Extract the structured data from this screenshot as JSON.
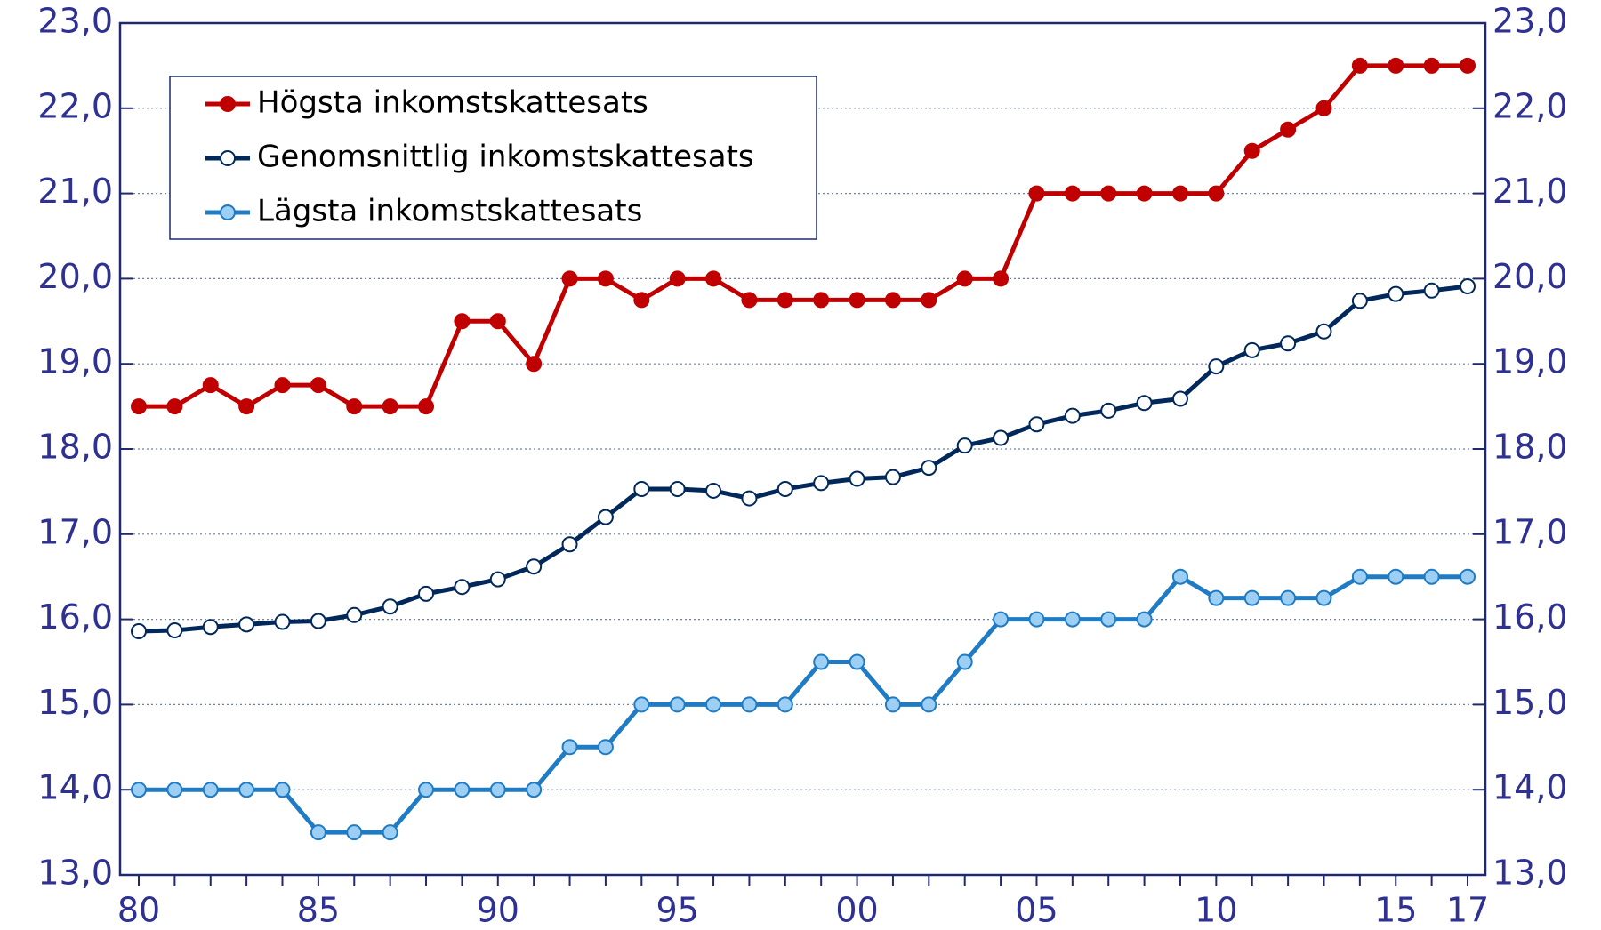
{
  "chart_data": {
    "type": "line",
    "categories": [
      "80",
      null,
      null,
      null,
      null,
      "85",
      null,
      null,
      null,
      null,
      "90",
      null,
      null,
      null,
      null,
      "95",
      null,
      null,
      null,
      null,
      "00",
      null,
      null,
      null,
      null,
      "05",
      null,
      null,
      null,
      null,
      "10",
      null,
      null,
      null,
      null,
      "15",
      null,
      "17"
    ],
    "series": [
      {
        "name": "Högsta inkomstskattesats",
        "color": "#c00000",
        "marker_fill": "#c00000",
        "values": [
          18.5,
          18.5,
          18.75,
          18.5,
          18.75,
          18.75,
          18.5,
          18.5,
          18.5,
          19.5,
          19.5,
          19.0,
          20.0,
          20.0,
          19.75,
          20.0,
          20.0,
          19.75,
          19.75,
          19.75,
          19.75,
          19.75,
          19.75,
          20.0,
          20.0,
          21.0,
          21.0,
          21.0,
          21.0,
          21.0,
          21.0,
          21.5,
          21.75,
          22.0,
          22.5,
          22.5,
          22.5,
          22.5
        ]
      },
      {
        "name": "Genomsnittlig inkomstskattesats",
        "color": "#00285a",
        "marker_fill": "#ffffff",
        "values": [
          15.86,
          15.87,
          15.91,
          15.94,
          15.97,
          15.98,
          16.05,
          16.15,
          16.3,
          16.38,
          16.47,
          16.62,
          16.88,
          17.2,
          17.53,
          17.53,
          17.51,
          17.42,
          17.53,
          17.6,
          17.65,
          17.67,
          17.78,
          18.04,
          18.13,
          18.29,
          18.39,
          18.45,
          18.54,
          18.59,
          18.97,
          19.16,
          19.24,
          19.38,
          19.74,
          19.82,
          19.86,
          19.91
        ]
      },
      {
        "name": "Lägsta inkomstskattesats",
        "color": "#1f7cc4",
        "marker_fill": "#9ccff3",
        "values": [
          14.0,
          14.0,
          14.0,
          14.0,
          14.0,
          13.5,
          13.5,
          13.5,
          14.0,
          14.0,
          14.0,
          14.0,
          14.5,
          14.5,
          15.0,
          15.0,
          15.0,
          15.0,
          15.0,
          15.5,
          15.5,
          15.0,
          15.0,
          15.5,
          16.0,
          16.0,
          16.0,
          16.0,
          16.0,
          16.5,
          16.25,
          16.25,
          16.25,
          16.25,
          16.5,
          16.5,
          16.5,
          16.5
        ]
      }
    ],
    "ylim": [
      13,
      23
    ],
    "yticks": [
      {
        "value": 13,
        "label": "13,0"
      },
      {
        "value": 14,
        "label": "14,0"
      },
      {
        "value": 15,
        "label": "15,0"
      },
      {
        "value": 16,
        "label": "16,0"
      },
      {
        "value": 17,
        "label": "17,0"
      },
      {
        "value": 18,
        "label": "18,0"
      },
      {
        "value": 19,
        "label": "19,0"
      },
      {
        "value": 20,
        "label": "20,0"
      },
      {
        "value": 21,
        "label": "21,0"
      },
      {
        "value": 22,
        "label": "22,0"
      },
      {
        "value": 23,
        "label": "23,0"
      }
    ],
    "y2lim": [
      13,
      23
    ],
    "y2ticks": [
      {
        "value": 13,
        "label": "13,0"
      },
      {
        "value": 14,
        "label": "14,0"
      },
      {
        "value": 15,
        "label": "15,0"
      },
      {
        "value": 16,
        "label": "16,0"
      },
      {
        "value": 17,
        "label": "17,0"
      },
      {
        "value": 18,
        "label": "18,0"
      },
      {
        "value": 19,
        "label": "19,0"
      },
      {
        "value": 20,
        "label": "20,0"
      },
      {
        "value": 21,
        "label": "21,0"
      },
      {
        "value": 22,
        "label": "22,0"
      },
      {
        "value": 23,
        "label": "23,0"
      }
    ],
    "grid": true,
    "legend": "upper left"
  }
}
